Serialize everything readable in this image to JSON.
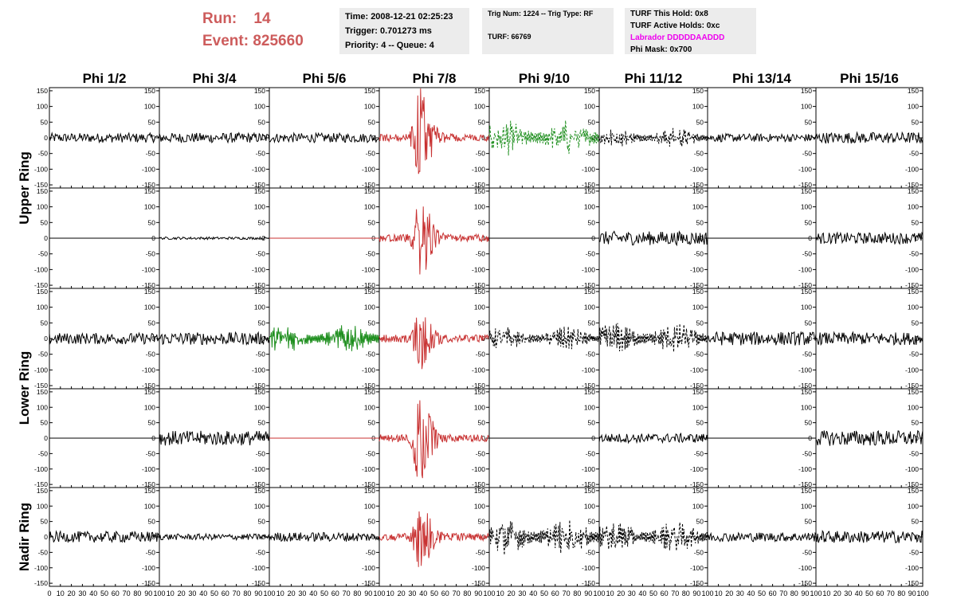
{
  "header": {
    "run_label": "Run:",
    "run_value": "14",
    "event_label": "Event:",
    "event_value": "825660",
    "accent_color": "#cd5c5c"
  },
  "info_time": {
    "time": "Time: 2008-12-21 02:25:23",
    "trigger": "Trigger: 0.701273 ms",
    "priority": "Priority: 4 -- Queue: 4"
  },
  "info_trig": {
    "trig": "Trig Num: 1224 -- Trig Type: RF",
    "turf": "TURF: 66769"
  },
  "info_turf": {
    "this_hold": "TURF This Hold: 0x8",
    "active_holds": "TURF Active Holds: 0xc",
    "labrador": "Labrador DDDDDAADDD",
    "labrador_color": "#ee00ee",
    "phi_mask": "Phi Mask: 0x700"
  },
  "chart_data": {
    "type": "line",
    "columns": [
      "Phi 1/2",
      "Phi 3/4",
      "Phi 5/6",
      "Phi 7/8",
      "Phi 9/10",
      "Phi 11/12",
      "Phi 13/14",
      "Phi 15/16"
    ],
    "ring_labels": [
      {
        "text": "Upper Ring",
        "rows": [
          0,
          1
        ]
      },
      {
        "text": "Lower Ring",
        "rows": [
          2,
          3
        ]
      },
      {
        "text": "Nadir Ring",
        "rows": [
          4
        ]
      }
    ],
    "ylim": [
      -160,
      160
    ],
    "yticks": [
      -150,
      -100,
      -50,
      0,
      50,
      100,
      150
    ],
    "xlim": [
      0,
      100
    ],
    "xticks": [
      0,
      10,
      20,
      30,
      40,
      50,
      60,
      70,
      80,
      90,
      100
    ],
    "colors": {
      "black": "#000000",
      "red": "#c83232",
      "green": "#1f8f1f"
    },
    "panels": [
      [
        {
          "color": "black",
          "dashed": false,
          "amp": 15,
          "kind": "noise",
          "flat": false
        },
        {
          "color": "black",
          "dashed": false,
          "amp": 16,
          "kind": "noise",
          "flat": false
        },
        {
          "color": "black",
          "dashed": false,
          "amp": 15,
          "kind": "noise",
          "flat": false
        },
        {
          "color": "red",
          "dashed": false,
          "amp": 150,
          "kind": "burst",
          "flat": false
        },
        {
          "color": "green",
          "dashed": true,
          "amp": 45,
          "kind": "dense",
          "flat": false
        },
        {
          "color": "black",
          "dashed": true,
          "amp": 25,
          "kind": "dense",
          "flat": false
        },
        {
          "color": "black",
          "dashed": false,
          "amp": 13,
          "kind": "noise",
          "flat": false
        },
        {
          "color": "black",
          "dashed": false,
          "amp": 18,
          "kind": "noise",
          "flat": false
        }
      ],
      [
        {
          "color": "black",
          "dashed": false,
          "amp": 0,
          "kind": "flat",
          "flat": true
        },
        {
          "color": "black",
          "dashed": false,
          "amp": 4,
          "kind": "noise",
          "flat": false
        },
        {
          "color": "red",
          "dashed": false,
          "amp": 0,
          "kind": "flat",
          "flat": true
        },
        {
          "color": "red",
          "dashed": false,
          "amp": 130,
          "kind": "burst",
          "flat": false
        },
        {
          "color": "black",
          "dashed": false,
          "amp": 0,
          "kind": "flat",
          "flat": true
        },
        {
          "color": "black",
          "dashed": false,
          "amp": 22,
          "kind": "noise",
          "flat": false
        },
        {
          "color": "black",
          "dashed": false,
          "amp": 0,
          "kind": "flat",
          "flat": true
        },
        {
          "color": "black",
          "dashed": false,
          "amp": 18,
          "kind": "noise",
          "flat": false
        }
      ],
      [
        {
          "color": "black",
          "dashed": false,
          "amp": 18,
          "kind": "noise",
          "flat": false
        },
        {
          "color": "black",
          "dashed": false,
          "amp": 20,
          "kind": "noise",
          "flat": false
        },
        {
          "color": "green",
          "dashed": false,
          "amp": 35,
          "kind": "dense",
          "flat": false
        },
        {
          "color": "red",
          "dashed": false,
          "amp": 90,
          "kind": "burst",
          "flat": false
        },
        {
          "color": "black",
          "dashed": true,
          "amp": 30,
          "kind": "dense",
          "flat": false
        },
        {
          "color": "black",
          "dashed": true,
          "amp": 40,
          "kind": "dense",
          "flat": false
        },
        {
          "color": "black",
          "dashed": false,
          "amp": 22,
          "kind": "noise",
          "flat": false
        },
        {
          "color": "black",
          "dashed": false,
          "amp": 20,
          "kind": "noise",
          "flat": false
        }
      ],
      [
        {
          "color": "black",
          "dashed": false,
          "amp": 0,
          "kind": "flat",
          "flat": true
        },
        {
          "color": "black",
          "dashed": false,
          "amp": 24,
          "kind": "noise",
          "flat": false
        },
        {
          "color": "red",
          "dashed": false,
          "amp": 0,
          "kind": "flat",
          "flat": true
        },
        {
          "color": "red",
          "dashed": false,
          "amp": 140,
          "kind": "burst",
          "flat": false
        },
        {
          "color": "black",
          "dashed": false,
          "amp": 0,
          "kind": "flat",
          "flat": true
        },
        {
          "color": "black",
          "dashed": false,
          "amp": 15,
          "kind": "noise",
          "flat": false
        },
        {
          "color": "black",
          "dashed": false,
          "amp": 0,
          "kind": "flat",
          "flat": true
        },
        {
          "color": "black",
          "dashed": false,
          "amp": 25,
          "kind": "noise",
          "flat": false
        }
      ],
      [
        {
          "color": "black",
          "dashed": false,
          "amp": 18,
          "kind": "noise",
          "flat": false
        },
        {
          "color": "black",
          "dashed": false,
          "amp": 10,
          "kind": "noise",
          "flat": false
        },
        {
          "color": "black",
          "dashed": false,
          "amp": 15,
          "kind": "noise",
          "flat": false
        },
        {
          "color": "red",
          "dashed": false,
          "amp": 100,
          "kind": "burst",
          "flat": false
        },
        {
          "color": "black",
          "dashed": true,
          "amp": 45,
          "kind": "dense",
          "flat": false
        },
        {
          "color": "black",
          "dashed": true,
          "amp": 40,
          "kind": "dense",
          "flat": false
        },
        {
          "color": "black",
          "dashed": false,
          "amp": 15,
          "kind": "noise",
          "flat": false
        },
        {
          "color": "black",
          "dashed": false,
          "amp": 20,
          "kind": "noise",
          "flat": false
        }
      ]
    ]
  }
}
